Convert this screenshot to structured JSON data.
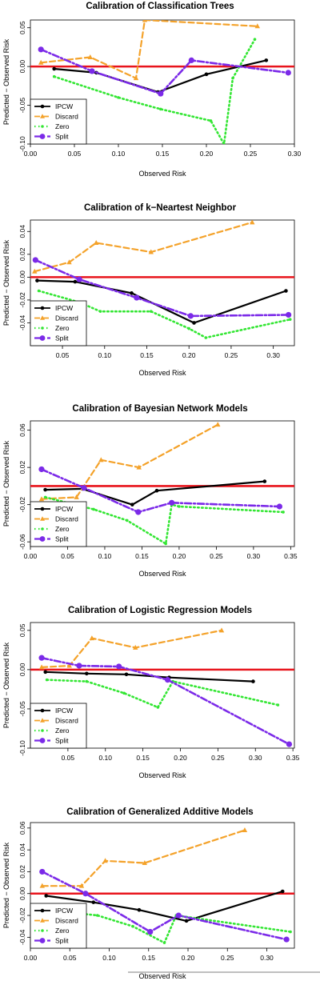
{
  "chart_data": [
    {
      "type": "line",
      "title": "Calibration of Classification Trees",
      "xlabel": "Observed Risk",
      "ylabel": "Predicted − Observed Risk",
      "xlim": [
        0.0,
        0.3
      ],
      "ylim": [
        -0.1,
        0.06
      ],
      "xticks": [
        "0.00",
        "0.05",
        "0.10",
        "0.15",
        "0.20",
        "0.25",
        "0.30"
      ],
      "xtick_values": [
        0,
        0.05,
        0.1,
        0.15,
        0.2,
        0.25,
        0.3
      ],
      "yticks": [
        "-0.10",
        "-0.05",
        "0.00",
        "0.05"
      ],
      "ytick_values": [
        -0.1,
        -0.05,
        0,
        0.05
      ],
      "reference_line": 0,
      "legend": "bottom-left",
      "series": [
        {
          "name": "IPCW",
          "color": "#000000",
          "dash": "solid",
          "marker": "dot",
          "x": [
            0.027,
            0.075,
            0.145,
            0.2,
            0.268
          ],
          "y": [
            -0.003,
            -0.008,
            -0.033,
            -0.01,
            0.008
          ]
        },
        {
          "name": "Discard",
          "color": "#f4a22a",
          "dash": "dash",
          "marker": "triangle",
          "x": [
            0.012,
            0.068,
            0.12,
            0.13,
            0.258
          ],
          "y": [
            0.005,
            0.012,
            -0.015,
            0.06,
            0.052
          ]
        },
        {
          "name": "Zero",
          "color": "#33e633",
          "dash": "dot",
          "marker": "small-dot",
          "x": [
            0.027,
            0.1,
            0.148,
            0.205,
            0.22,
            0.23,
            0.255
          ],
          "y": [
            -0.013,
            -0.04,
            -0.055,
            -0.07,
            -0.1,
            -0.015,
            0.035
          ]
        },
        {
          "name": "Split",
          "color": "#7b2ae8",
          "dash": "dashdot",
          "marker": "big-dot",
          "x": [
            0.012,
            0.07,
            0.148,
            0.183,
            0.293
          ],
          "y": [
            0.022,
            -0.006,
            -0.035,
            0.008,
            -0.008
          ]
        }
      ]
    },
    {
      "type": "line",
      "title": "Calibration of k−Neartest Neighbor",
      "xlabel": "Observed Risk",
      "ylabel": "Predicted − Observed Risk",
      "xlim": [
        0.012,
        0.325
      ],
      "ylim": [
        -0.06,
        0.05
      ],
      "xticks": [
        "0.05",
        "0.10",
        "0.15",
        "0.20",
        "0.25",
        "0.30"
      ],
      "xtick_values": [
        0.05,
        0.1,
        0.15,
        0.2,
        0.25,
        0.3
      ],
      "yticks": [
        "-0.04",
        "-0.02",
        "0.00",
        "0.02",
        "0.04"
      ],
      "ytick_values": [
        -0.04,
        -0.02,
        0,
        0.02,
        0.04
      ],
      "reference_line": 0,
      "legend": "bottom-left",
      "series": [
        {
          "name": "IPCW",
          "color": "#000000",
          "dash": "solid",
          "marker": "dot",
          "x": [
            0.02,
            0.065,
            0.132,
            0.206,
            0.315
          ],
          "y": [
            -0.003,
            -0.004,
            -0.014,
            -0.04,
            -0.012
          ]
        },
        {
          "name": "Discard",
          "color": "#f4a22a",
          "dash": "dash",
          "marker": "triangle",
          "x": [
            0.017,
            0.058,
            0.09,
            0.155,
            0.275
          ],
          "y": [
            0.005,
            0.013,
            0.03,
            0.022,
            0.048
          ]
        },
        {
          "name": "Zero",
          "color": "#33e633",
          "dash": "dot",
          "marker": "small-dot",
          "x": [
            0.022,
            0.07,
            0.095,
            0.155,
            0.2,
            0.22,
            0.32
          ],
          "y": [
            -0.012,
            -0.022,
            -0.03,
            -0.03,
            -0.045,
            -0.053,
            -0.037
          ]
        },
        {
          "name": "Split",
          "color": "#7b2ae8",
          "dash": "dashdot",
          "marker": "big-dot",
          "x": [
            0.018,
            0.07,
            0.138,
            0.202,
            0.318
          ],
          "y": [
            0.015,
            -0.002,
            -0.018,
            -0.034,
            -0.033
          ]
        }
      ]
    },
    {
      "type": "line",
      "title": "Calibration of Bayesian Network Models",
      "xlabel": "Observed Risk",
      "ylabel": "Predicted − Observed Risk",
      "xlim": [
        0.0,
        0.355
      ],
      "ylim": [
        -0.065,
        0.07
      ],
      "xticks": [
        "0.00",
        "0.05",
        "0.10",
        "0.15",
        "0.20",
        "0.25",
        "0.30",
        "0.35"
      ],
      "xtick_values": [
        0,
        0.05,
        0.1,
        0.15,
        0.2,
        0.25,
        0.3,
        0.35
      ],
      "yticks": [
        "-0.06",
        "-0.02",
        "0.02",
        "0.06"
      ],
      "ytick_values": [
        -0.06,
        -0.02,
        0.02,
        0.06
      ],
      "reference_line": 0,
      "legend": "bottom-left",
      "series": [
        {
          "name": "IPCW",
          "color": "#000000",
          "dash": "solid",
          "marker": "dot",
          "x": [
            0.02,
            0.07,
            0.137,
            0.17,
            0.315
          ],
          "y": [
            -0.004,
            -0.003,
            -0.02,
            -0.005,
            0.005
          ]
        },
        {
          "name": "Discard",
          "color": "#f4a22a",
          "dash": "dash",
          "marker": "triangle",
          "x": [
            0.015,
            0.062,
            0.095,
            0.146,
            0.252
          ],
          "y": [
            -0.014,
            -0.012,
            0.028,
            0.02,
            0.066
          ]
        },
        {
          "name": "Zero",
          "color": "#33e633",
          "dash": "dot",
          "marker": "small-dot",
          "x": [
            0.02,
            0.085,
            0.13,
            0.182,
            0.19,
            0.2,
            0.34
          ],
          "y": [
            -0.012,
            -0.025,
            -0.037,
            -0.062,
            -0.02,
            -0.022,
            -0.028
          ]
        },
        {
          "name": "Split",
          "color": "#7b2ae8",
          "dash": "dashdot",
          "marker": "big-dot",
          "x": [
            0.015,
            0.072,
            0.145,
            0.19,
            0.335
          ],
          "y": [
            0.018,
            -0.002,
            -0.028,
            -0.018,
            -0.022
          ]
        }
      ]
    },
    {
      "type": "line",
      "title": "Calibration of Logistic Regression Models",
      "xlabel": "Observed Risk",
      "ylabel": "Predicted − Observed Risk",
      "xlim": [
        0.0,
        0.352
      ],
      "ylim": [
        -0.1,
        0.06
      ],
      "xticks": [
        "0.05",
        "0.10",
        "0.15",
        "0.20",
        "0.25",
        "0.30",
        "0.35"
      ],
      "xtick_values": [
        0.05,
        0.1,
        0.15,
        0.2,
        0.25,
        0.3,
        0.35
      ],
      "yticks": [
        "-0.10",
        "-0.05",
        "0.00",
        "0.05"
      ],
      "ytick_values": [
        -0.1,
        -0.05,
        0,
        0.05
      ],
      "reference_line": 0,
      "legend": "bottom-left",
      "series": [
        {
          "name": "IPCW",
          "color": "#000000",
          "dash": "solid",
          "marker": "dot",
          "x": [
            0.02,
            0.075,
            0.128,
            0.185,
            0.297
          ],
          "y": [
            -0.003,
            -0.005,
            -0.006,
            -0.01,
            -0.015
          ]
        },
        {
          "name": "Discard",
          "color": "#f4a22a",
          "dash": "dash",
          "marker": "triangle",
          "x": [
            0.015,
            0.052,
            0.082,
            0.14,
            0.255
          ],
          "y": [
            0.003,
            0.005,
            0.04,
            0.028,
            0.05
          ]
        },
        {
          "name": "Zero",
          "color": "#33e633",
          "dash": "dot",
          "marker": "small-dot",
          "x": [
            0.022,
            0.075,
            0.125,
            0.17,
            0.19,
            0.33
          ],
          "y": [
            -0.013,
            -0.015,
            -0.03,
            -0.048,
            -0.015,
            -0.045
          ]
        },
        {
          "name": "Split",
          "color": "#7b2ae8",
          "dash": "dashdot",
          "marker": "big-dot",
          "x": [
            0.015,
            0.065,
            0.118,
            0.183,
            0.345
          ],
          "y": [
            0.015,
            0.005,
            0.004,
            -0.013,
            -0.095
          ]
        }
      ]
    },
    {
      "type": "line",
      "title": "Calibration of Generalized Additive Models",
      "xlabel": "Observed Risk",
      "ylabel": "Predicted − Observed Risk",
      "xlim": [
        0.0,
        0.335
      ],
      "ylim": [
        -0.05,
        0.065
      ],
      "xticks": [
        "0.00",
        "0.05",
        "0.10",
        "0.15",
        "0.20",
        "0.25",
        "0.30"
      ],
      "xtick_values": [
        0,
        0.05,
        0.1,
        0.15,
        0.2,
        0.25,
        0.3
      ],
      "yticks": [
        "-0.04",
        "-0.02",
        "0.00",
        "0.02",
        "0.04",
        "0.06"
      ],
      "ytick_values": [
        -0.04,
        -0.02,
        0,
        0.02,
        0.04,
        0.06
      ],
      "reference_line": 0,
      "legend": "bottom-left",
      "series": [
        {
          "name": "IPCW",
          "color": "#000000",
          "dash": "solid",
          "marker": "dot",
          "x": [
            0.02,
            0.08,
            0.138,
            0.198,
            0.32
          ],
          "y": [
            -0.002,
            -0.008,
            -0.015,
            -0.025,
            0.002
          ]
        },
        {
          "name": "Discard",
          "color": "#f4a22a",
          "dash": "dash",
          "marker": "triangle",
          "x": [
            0.015,
            0.065,
            0.095,
            0.145,
            0.272
          ],
          "y": [
            0.007,
            0.007,
            0.03,
            0.028,
            0.058
          ]
        },
        {
          "name": "Zero",
          "color": "#33e633",
          "dash": "dot",
          "marker": "small-dot",
          "x": [
            0.02,
            0.085,
            0.13,
            0.17,
            0.185,
            0.33
          ],
          "y": [
            -0.015,
            -0.02,
            -0.03,
            -0.045,
            -0.02,
            -0.035
          ]
        },
        {
          "name": "Split",
          "color": "#7b2ae8",
          "dash": "dashdot",
          "marker": "big-dot",
          "x": [
            0.015,
            0.07,
            0.152,
            0.188,
            0.325
          ],
          "y": [
            0.02,
            0.0,
            -0.035,
            -0.02,
            -0.042
          ]
        }
      ]
    }
  ]
}
